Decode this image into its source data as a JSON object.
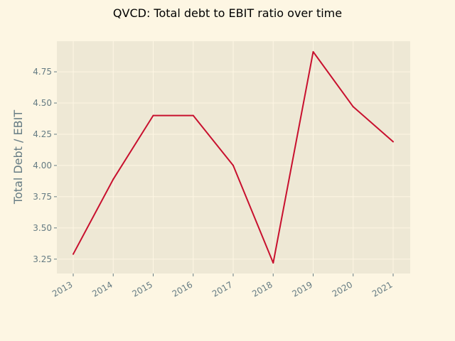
{
  "chart_data": {
    "type": "line",
    "title": "QVCD: Total debt to EBIT ratio over time",
    "xlabel": "",
    "ylabel": "Total Debt / EBIT",
    "x": [
      "2013",
      "2014",
      "2015",
      "2016",
      "2017",
      "2018",
      "2019",
      "2020",
      "2021"
    ],
    "series": [
      {
        "values": [
          3.29,
          3.89,
          4.4,
          4.4,
          4.0,
          3.22,
          4.91,
          4.47,
          4.19
        ]
      }
    ],
    "yticks": [
      "3.25",
      "3.50",
      "3.75",
      "4.00",
      "4.25",
      "4.50",
      "4.75"
    ],
    "ylim": [
      3.135,
      4.995
    ],
    "grid": true,
    "colors": {
      "figure_background": "#fdf6e3",
      "plot_background": "#eee8d5",
      "grid": "#fdf6e3",
      "line": "#c8102e",
      "tick_text": "#657b83",
      "title_text": "#000000"
    }
  }
}
